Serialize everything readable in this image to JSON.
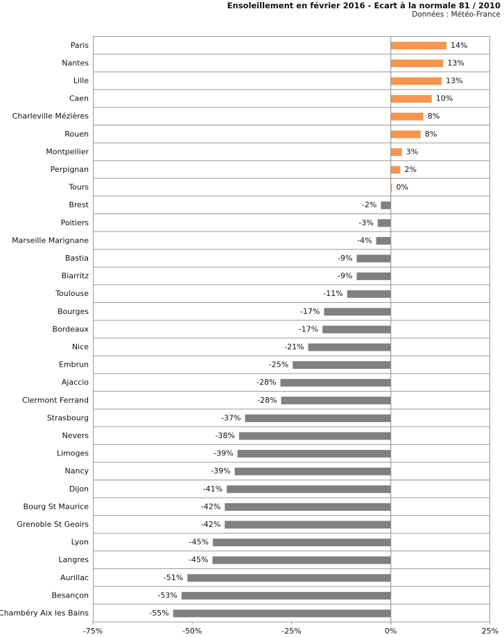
{
  "header": {
    "title": "Ensoleillement en février 2016 - Ecart à la normale 81 / 2010",
    "source": "Données : Météo-France"
  },
  "colors": {
    "positive": "#F5964F",
    "negative": "#808080",
    "grid": "#999999",
    "zero_line": "#888888"
  },
  "chart_data": {
    "type": "bar",
    "orientation": "horizontal",
    "title": "Ensoleillement en février 2016 - Ecart à la normale 81 / 2010",
    "subtitle": "Données : Météo-France",
    "xlabel": "",
    "ylabel": "",
    "xlim": [
      -75,
      25
    ],
    "x_ticks": [
      -75,
      -50,
      -25,
      0,
      25
    ],
    "x_tick_labels": [
      "-75%",
      "-50%",
      "-25%",
      "0%",
      "25%"
    ],
    "grid": true,
    "unit": "%",
    "categories": [
      "Paris",
      "Nantes",
      "Lille",
      "Caen",
      "Charleville Mézières",
      "Rouen",
      "Montpellier",
      "Perpignan",
      "Tours",
      "Brest",
      "Poitiers",
      "Marseille Marignane",
      "Bastia",
      "Biarritz",
      "Toulouse",
      "Bourges",
      "Bordeaux",
      "Nice",
      "Embrun",
      "Ajaccio",
      "Clermont Ferrand",
      "Strasbourg",
      "Nevers",
      "Limoges",
      "Nancy",
      "Dijon",
      "Bourg St Maurice",
      "Grenoble St Geoirs",
      "Lyon",
      "Langres",
      "Aurillac",
      "Besançon",
      "Chambéry Aix les Bains"
    ],
    "values": [
      14,
      13.2,
      12.8,
      10.3,
      8.2,
      7.5,
      2.8,
      2.4,
      0.3,
      -2.5,
      -3.3,
      -3.7,
      -8.6,
      -8.6,
      -11,
      -16.8,
      -17.2,
      -20.8,
      -24.7,
      -27.8,
      -27.6,
      -36.7,
      -38.2,
      -38.6,
      -39.3,
      -41.3,
      -41.8,
      -41.8,
      -44.8,
      -44.9,
      -51.2,
      -52.7,
      -54.8
    ],
    "value_labels": [
      "14%",
      "13%",
      "13%",
      "10%",
      "8%",
      "8%",
      "3%",
      "2%",
      "0%",
      "-2%",
      "-3%",
      "-4%",
      "-9%",
      "-9%",
      "-11%",
      "-17%",
      "-17%",
      "-21%",
      "-25%",
      "-28%",
      "-28%",
      "-37%",
      "-38%",
      "-39%",
      "-39%",
      "-41%",
      "-42%",
      "-42%",
      "-45%",
      "-45%",
      "-51%",
      "-53%",
      "-55%"
    ]
  }
}
